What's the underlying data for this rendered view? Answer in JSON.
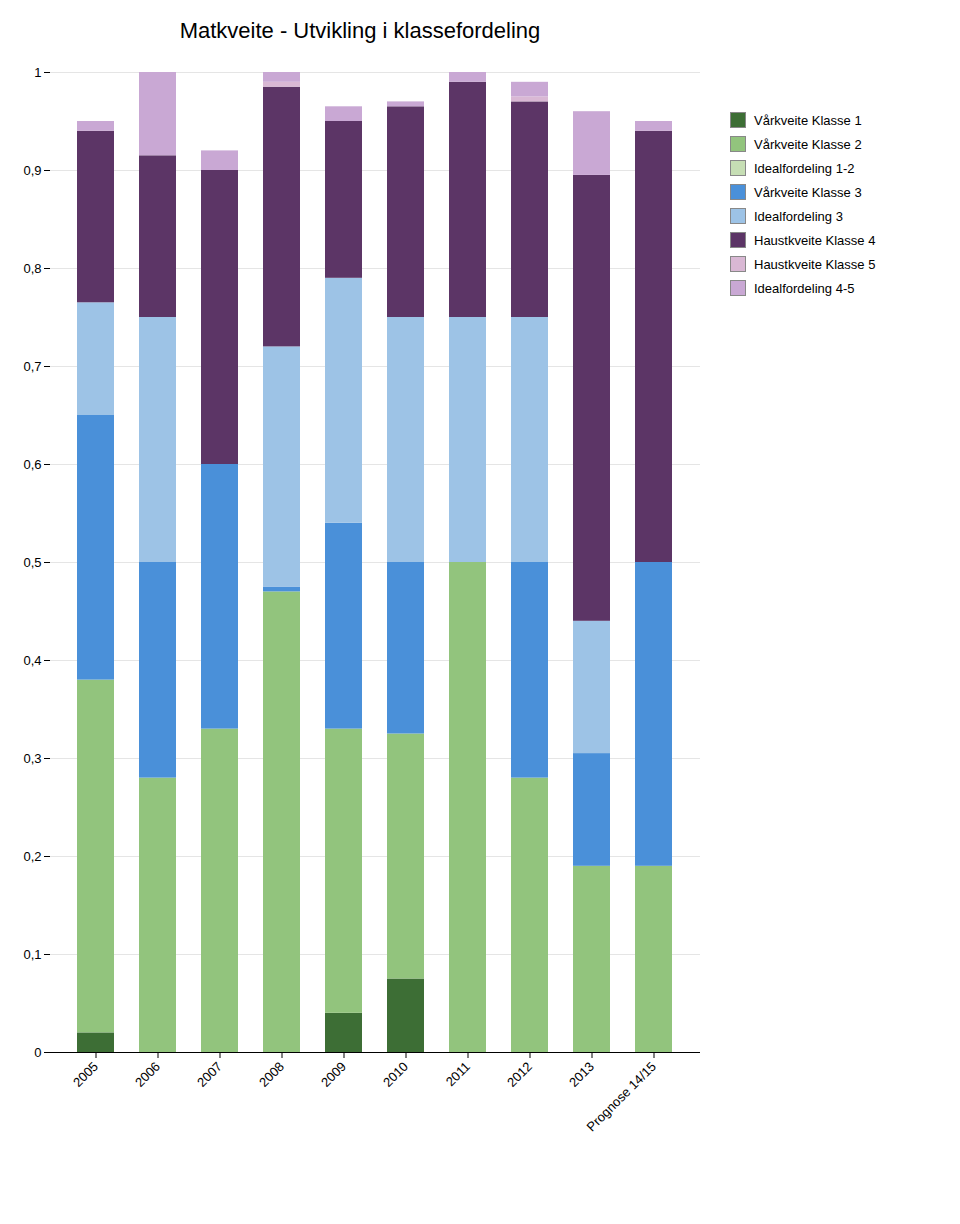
{
  "chart_data": {
    "type": "bar",
    "stacked": true,
    "title": "Matkveite - Utvikling i klassefordeling",
    "categories": [
      "2005",
      "2006",
      "2007",
      "2008",
      "2009",
      "2010",
      "2011",
      "2012",
      "2013",
      "Prognose 14/15"
    ],
    "series": [
      {
        "name": "Vårkveite Klasse 1",
        "color": "#3d6e35",
        "values": [
          0.02,
          0.0,
          0.0,
          0.0,
          0.04,
          0.075,
          0.0,
          0.0,
          0.0,
          0.0
        ]
      },
      {
        "name": "Vårkveite Klasse 2",
        "color": "#92c47d",
        "values": [
          0.36,
          0.28,
          0.33,
          0.47,
          0.29,
          0.25,
          0.5,
          0.28,
          0.19,
          0.19
        ]
      },
      {
        "name": "Idealfordeling 1-2",
        "color": "#c6deb4",
        "values": [
          0.0,
          0.0,
          0.0,
          0.0,
          0.0,
          0.0,
          0.0,
          0.0,
          0.0,
          0.0
        ]
      },
      {
        "name": "Vårkveite Klasse 3",
        "color": "#4a90d9",
        "values": [
          0.27,
          0.22,
          0.27,
          0.005,
          0.21,
          0.175,
          0.0,
          0.22,
          0.115,
          0.31
        ]
      },
      {
        "name": "Idealfordeling 3",
        "color": "#9dc3e6",
        "values": [
          0.115,
          0.25,
          0.0,
          0.245,
          0.25,
          0.25,
          0.25,
          0.25,
          0.135,
          0.0
        ]
      },
      {
        "name": "Haustkveite Klasse 4",
        "color": "#5c3566",
        "values": [
          0.175,
          0.165,
          0.3,
          0.265,
          0.16,
          0.215,
          0.24,
          0.22,
          0.455,
          0.44
        ]
      },
      {
        "name": "Haustkveite Klasse 5",
        "color": "#d9b8d4",
        "values": [
          0.0,
          0.0,
          0.0,
          0.005,
          0.0,
          0.0,
          0.0,
          0.005,
          0.0,
          0.0
        ]
      },
      {
        "name": "Idealfordeling 4-5",
        "color": "#c9a8d4",
        "values": [
          0.01,
          0.085,
          0.02,
          0.01,
          0.015,
          0.005,
          0.01,
          0.015,
          0.065,
          0.01
        ]
      }
    ],
    "ylim": [
      0,
      1.0
    ],
    "yticks": [
      0,
      {
        "value": 0.1,
        "label": "0,1"
      },
      {
        "value": 0.2,
        "label": "0,2"
      },
      {
        "value": 0.3,
        "label": "0,3"
      },
      {
        "value": 0.4,
        "label": "0,4"
      },
      {
        "value": 0.5,
        "label": "0,5"
      },
      {
        "value": 0.6,
        "label": "0,6"
      },
      {
        "value": 0.7,
        "label": "0,7"
      },
      {
        "value": 0.8,
        "label": "0,8"
      },
      {
        "value": 0.9,
        "label": "0,9"
      },
      1
    ],
    "grid": true,
    "legend": "right"
  }
}
